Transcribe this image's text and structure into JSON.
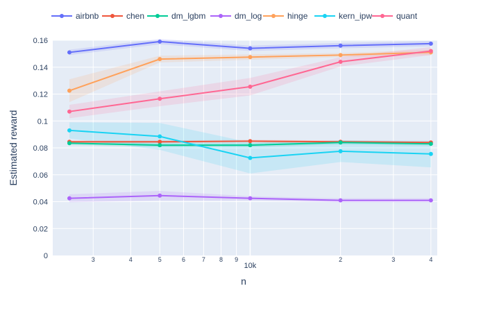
{
  "chart_data": {
    "type": "line",
    "title": "",
    "xlabel": "n",
    "ylabel": "Estimated reward",
    "x_scale": "log",
    "xlim": [
      2200,
      42000
    ],
    "ylim": [
      0,
      0.16
    ],
    "grid": true,
    "legend_position": "top",
    "x": [
      2500,
      5000,
      10000,
      20000,
      40000
    ],
    "x_ticks": [
      {
        "value": 3000,
        "label": "3"
      },
      {
        "value": 4000,
        "label": "4"
      },
      {
        "value": 5000,
        "label": "5"
      },
      {
        "value": 6000,
        "label": "6"
      },
      {
        "value": 7000,
        "label": "7"
      },
      {
        "value": 8000,
        "label": "8"
      },
      {
        "value": 9000,
        "label": "9"
      },
      {
        "value": 10000,
        "label": "10k"
      },
      {
        "value": 20000,
        "label": "2"
      },
      {
        "value": 30000,
        "label": "3"
      },
      {
        "value": 40000,
        "label": "4"
      }
    ],
    "y_ticks": [
      {
        "value": 0,
        "label": "0"
      },
      {
        "value": 0.02,
        "label": "0.02"
      },
      {
        "value": 0.04,
        "label": "0.04"
      },
      {
        "value": 0.06,
        "label": "0.06"
      },
      {
        "value": 0.08,
        "label": "0.08"
      },
      {
        "value": 0.1,
        "label": "0.1"
      },
      {
        "value": 0.12,
        "label": "0.12"
      },
      {
        "value": 0.14,
        "label": "0.14"
      },
      {
        "value": 0.16,
        "label": "0.16"
      }
    ],
    "series": [
      {
        "name": "airbnb",
        "color": "#636efa",
        "values": [
          0.151,
          0.159,
          0.154,
          0.156,
          0.1575
        ],
        "lower": [
          0.149,
          0.157,
          0.152,
          0.154,
          0.1555
        ],
        "upper": [
          0.153,
          0.161,
          0.156,
          0.158,
          0.1595
        ]
      },
      {
        "name": "chen",
        "color": "#ef553b",
        "values": [
          0.0845,
          0.0845,
          0.085,
          0.0845,
          0.084
        ],
        "lower": [
          0.0835,
          0.0835,
          0.084,
          0.0835,
          0.083
        ],
        "upper": [
          0.0855,
          0.0855,
          0.086,
          0.0855,
          0.085
        ]
      },
      {
        "name": "dm_lgbm",
        "color": "#00cc96",
        "values": [
          0.0835,
          0.082,
          0.082,
          0.084,
          0.083
        ],
        "lower": [
          0.082,
          0.0805,
          0.0805,
          0.0825,
          0.0815
        ],
        "upper": [
          0.085,
          0.0835,
          0.0835,
          0.0855,
          0.0845
        ]
      },
      {
        "name": "dm_log",
        "color": "#ab63fa",
        "values": [
          0.0425,
          0.0445,
          0.0425,
          0.041,
          0.041
        ],
        "lower": [
          0.0395,
          0.041,
          0.041,
          0.0395,
          0.0395
        ],
        "upper": [
          0.0455,
          0.048,
          0.044,
          0.0425,
          0.0425
        ]
      },
      {
        "name": "hinge",
        "color": "#ffa15a",
        "values": [
          0.1225,
          0.146,
          0.1475,
          0.149,
          0.151
        ],
        "lower": [
          0.114,
          0.1435,
          0.1455,
          0.1475,
          0.149
        ],
        "upper": [
          0.131,
          0.1485,
          0.1495,
          0.1505,
          0.153
        ]
      },
      {
        "name": "kern_ipw",
        "color": "#19d3f3",
        "values": [
          0.093,
          0.0885,
          0.0725,
          0.0775,
          0.0755
        ],
        "lower": [
          0.087,
          0.0785,
          0.061,
          0.0695,
          0.0655
        ],
        "upper": [
          0.099,
          0.0985,
          0.084,
          0.0855,
          0.0855
        ]
      },
      {
        "name": "quant",
        "color": "#ff6692",
        "values": [
          0.107,
          0.1165,
          0.1255,
          0.144,
          0.152
        ],
        "lower": [
          0.102,
          0.111,
          0.119,
          0.1405,
          0.149
        ],
        "upper": [
          0.112,
          0.122,
          0.132,
          0.1475,
          0.155
        ]
      }
    ]
  }
}
